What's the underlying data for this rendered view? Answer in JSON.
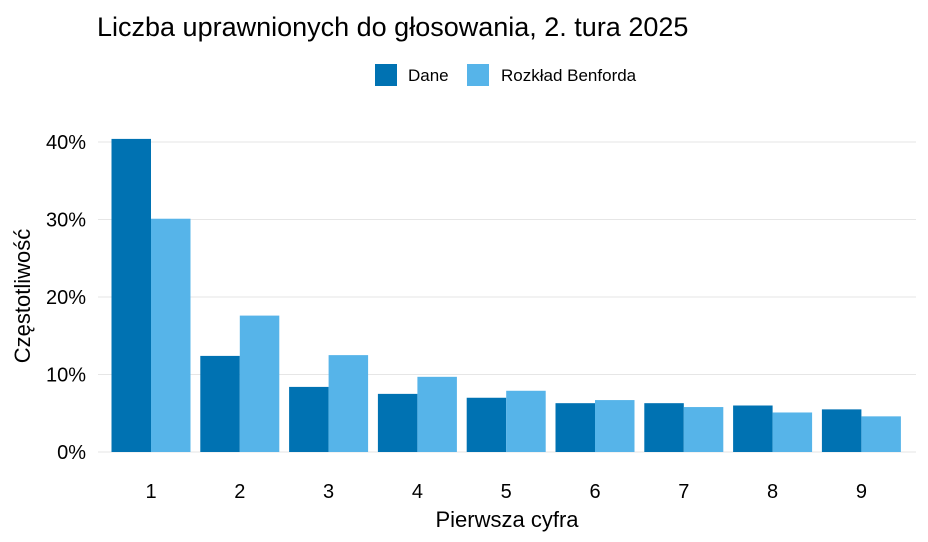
{
  "chart_data": {
    "type": "bar",
    "title": "Liczba uprawnionych do głosowania, 2. tura 2025",
    "xlabel": "Pierwsza cyfra",
    "ylabel": "Częstotliwość",
    "categories": [
      "1",
      "2",
      "3",
      "4",
      "5",
      "6",
      "7",
      "8",
      "9"
    ],
    "series": [
      {
        "name": "Dane",
        "color": "#0072b2",
        "values": [
          40.4,
          12.4,
          8.4,
          7.5,
          7.0,
          6.3,
          6.3,
          6.0,
          5.5
        ]
      },
      {
        "name": "Rozkład Benforda",
        "color": "#56b4e9",
        "values": [
          30.1,
          17.6,
          12.5,
          9.7,
          7.9,
          6.7,
          5.8,
          5.1,
          4.6
        ]
      }
    ],
    "ylim": [
      0,
      42
    ],
    "yticks": [
      0,
      10,
      20,
      30,
      40
    ],
    "ytick_labels": [
      "0%",
      "10%",
      "20%",
      "30%",
      "40%"
    ],
    "grid": true,
    "legend_position": "top"
  }
}
